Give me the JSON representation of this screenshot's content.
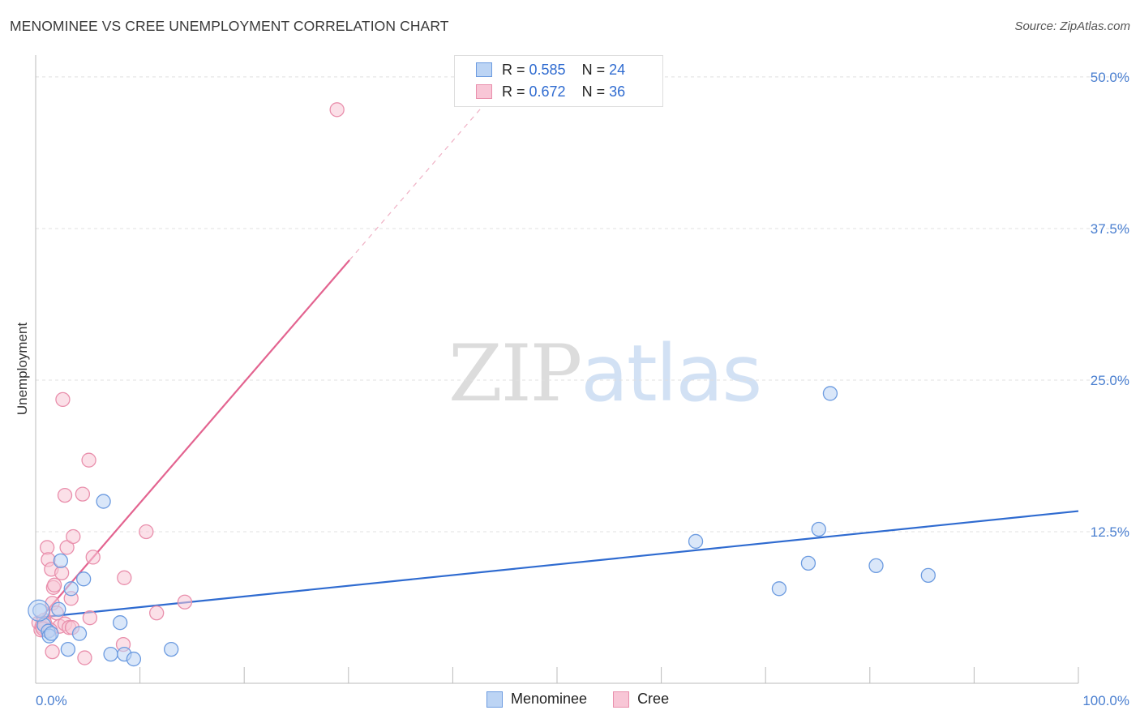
{
  "title": "MENOMINEE VS CREE UNEMPLOYMENT CORRELATION CHART",
  "source": "Source: ZipAtlas.com",
  "watermark": {
    "zip": "ZIP",
    "atlas": "atlas"
  },
  "colors": {
    "menominee_fill": "#bcd4f4",
    "menominee_stroke": "#6c9be0",
    "menominee_line": "#2f6bd0",
    "cree_fill": "#f8c6d6",
    "cree_stroke": "#e98fac",
    "cree_line": "#e36490",
    "tick_text": "#4a7fd0",
    "grid": "#e0e0e0"
  },
  "legend": {
    "menominee": {
      "r_label": "R = ",
      "r_value": "0.585",
      "n_label": "N = ",
      "n_value": "24"
    },
    "cree": {
      "r_label": "R = ",
      "r_value": "0.672",
      "n_label": "N = ",
      "n_value": "36"
    }
  },
  "chart_data": {
    "type": "scatter",
    "title": "MENOMINEE VS CREE UNEMPLOYMENT CORRELATION CHART",
    "xlabel": "",
    "ylabel": "Unemployment",
    "xlim": [
      0,
      100
    ],
    "ylim": [
      0,
      51.8
    ],
    "x_tick_labels": [
      "0.0%",
      "100.0%"
    ],
    "y_ticks": [
      12.5,
      25.0,
      37.5,
      50.0
    ],
    "y_tick_labels": [
      "12.5%",
      "25.0%",
      "37.5%",
      "50.0%"
    ],
    "legend_position": "bottom-center",
    "series": [
      {
        "name": "Menominee",
        "r": 0.585,
        "n": 24,
        "points": [
          [
            0.4,
            6.0
          ],
          [
            0.8,
            4.8
          ],
          [
            1.2,
            4.3
          ],
          [
            1.3,
            3.9
          ],
          [
            1.5,
            4.1
          ],
          [
            2.2,
            6.1
          ],
          [
            2.4,
            10.1
          ],
          [
            3.1,
            2.8
          ],
          [
            3.4,
            7.8
          ],
          [
            4.2,
            4.1
          ],
          [
            4.6,
            8.6
          ],
          [
            6.5,
            15.0
          ],
          [
            7.2,
            2.4
          ],
          [
            8.1,
            5.0
          ],
          [
            8.5,
            2.4
          ],
          [
            9.4,
            2.0
          ],
          [
            13.0,
            2.8
          ],
          [
            63.3,
            11.7
          ],
          [
            71.3,
            7.8
          ],
          [
            74.1,
            9.9
          ],
          [
            75.1,
            12.7
          ],
          [
            76.2,
            23.9
          ],
          [
            80.6,
            9.7
          ],
          [
            85.6,
            8.9
          ]
        ],
        "trend": {
          "x0": 0.0,
          "y0": 5.4,
          "x1": 100.0,
          "y1": 14.2
        }
      },
      {
        "name": "Cree",
        "r": 0.672,
        "n": 36,
        "points": [
          [
            0.3,
            5.0
          ],
          [
            0.5,
            4.4
          ],
          [
            0.6,
            4.7
          ],
          [
            0.8,
            5.2
          ],
          [
            0.9,
            4.9
          ],
          [
            1.1,
            11.2
          ],
          [
            1.2,
            10.2
          ],
          [
            1.5,
            9.4
          ],
          [
            1.6,
            6.6
          ],
          [
            1.6,
            2.6
          ],
          [
            1.7,
            7.9
          ],
          [
            1.8,
            8.1
          ],
          [
            2.0,
            5.8
          ],
          [
            2.3,
            4.7
          ],
          [
            2.5,
            9.1
          ],
          [
            2.6,
            23.4
          ],
          [
            2.8,
            4.9
          ],
          [
            2.8,
            15.5
          ],
          [
            3.0,
            11.2
          ],
          [
            3.2,
            4.6
          ],
          [
            3.4,
            7.0
          ],
          [
            3.5,
            4.6
          ],
          [
            3.6,
            12.1
          ],
          [
            4.5,
            15.6
          ],
          [
            4.7,
            2.1
          ],
          [
            5.1,
            18.4
          ],
          [
            5.2,
            5.4
          ],
          [
            5.5,
            10.4
          ],
          [
            8.4,
            3.2
          ],
          [
            8.5,
            8.7
          ],
          [
            10.6,
            12.5
          ],
          [
            11.6,
            5.8
          ],
          [
            14.3,
            6.7
          ],
          [
            28.9,
            47.3
          ],
          [
            0.7,
            4.5
          ],
          [
            1.4,
            4.4
          ]
        ],
        "trend_solid": {
          "x0": 0.3,
          "y0": 5.2,
          "x1": 30.1,
          "y1": 34.9
        },
        "trend_dashed": {
          "x0": 30.1,
          "y0": 34.9,
          "x1": 44.6,
          "y1": 49.3
        }
      }
    ]
  }
}
